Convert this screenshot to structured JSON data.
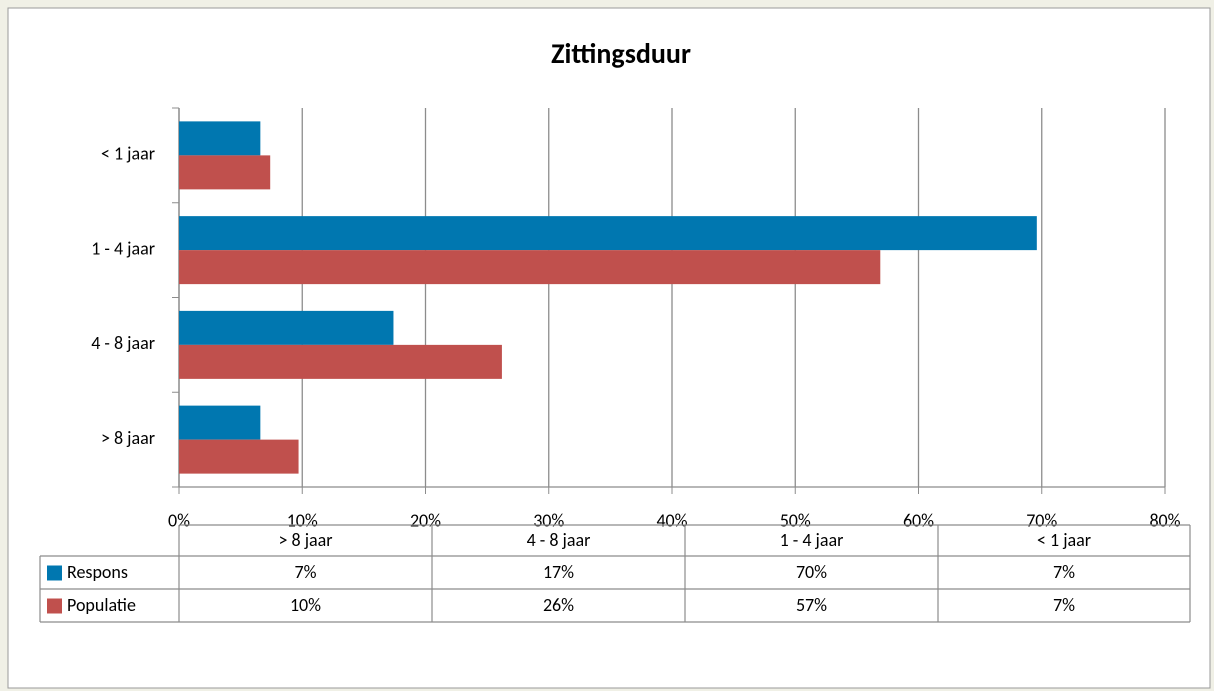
{
  "chart_data": {
    "type": "hbar",
    "title": "Zittingsduur",
    "categories": [
      "> 8 jaar",
      "4 - 8 jaar",
      "1 - 4 jaar",
      "< 1 jaar"
    ],
    "series": [
      {
        "name": "Respons",
        "color": "#0077b0",
        "values": [
          6.6,
          17.4,
          69.6,
          6.6
        ],
        "value_labels": [
          "7%",
          "17%",
          "70%",
          "7%"
        ]
      },
      {
        "name": "Populatie",
        "color": "#c0504d",
        "values": [
          9.7,
          26.2,
          56.9,
          7.4
        ],
        "value_labels": [
          "10%",
          "26%",
          "57%",
          "7%"
        ]
      }
    ],
    "xlim": [
      0,
      80
    ],
    "xticks": [
      {
        "value": 0,
        "label": "0%"
      },
      {
        "value": 10,
        "label": "10%"
      },
      {
        "value": 20,
        "label": "20%"
      },
      {
        "value": 30,
        "label": "30%"
      },
      {
        "value": 40,
        "label": "40%"
      },
      {
        "value": 50,
        "label": "50%"
      },
      {
        "value": 60,
        "label": "60%"
      },
      {
        "value": 70,
        "label": "70%"
      },
      {
        "value": 80,
        "label": "80%"
      }
    ],
    "grid": true
  }
}
